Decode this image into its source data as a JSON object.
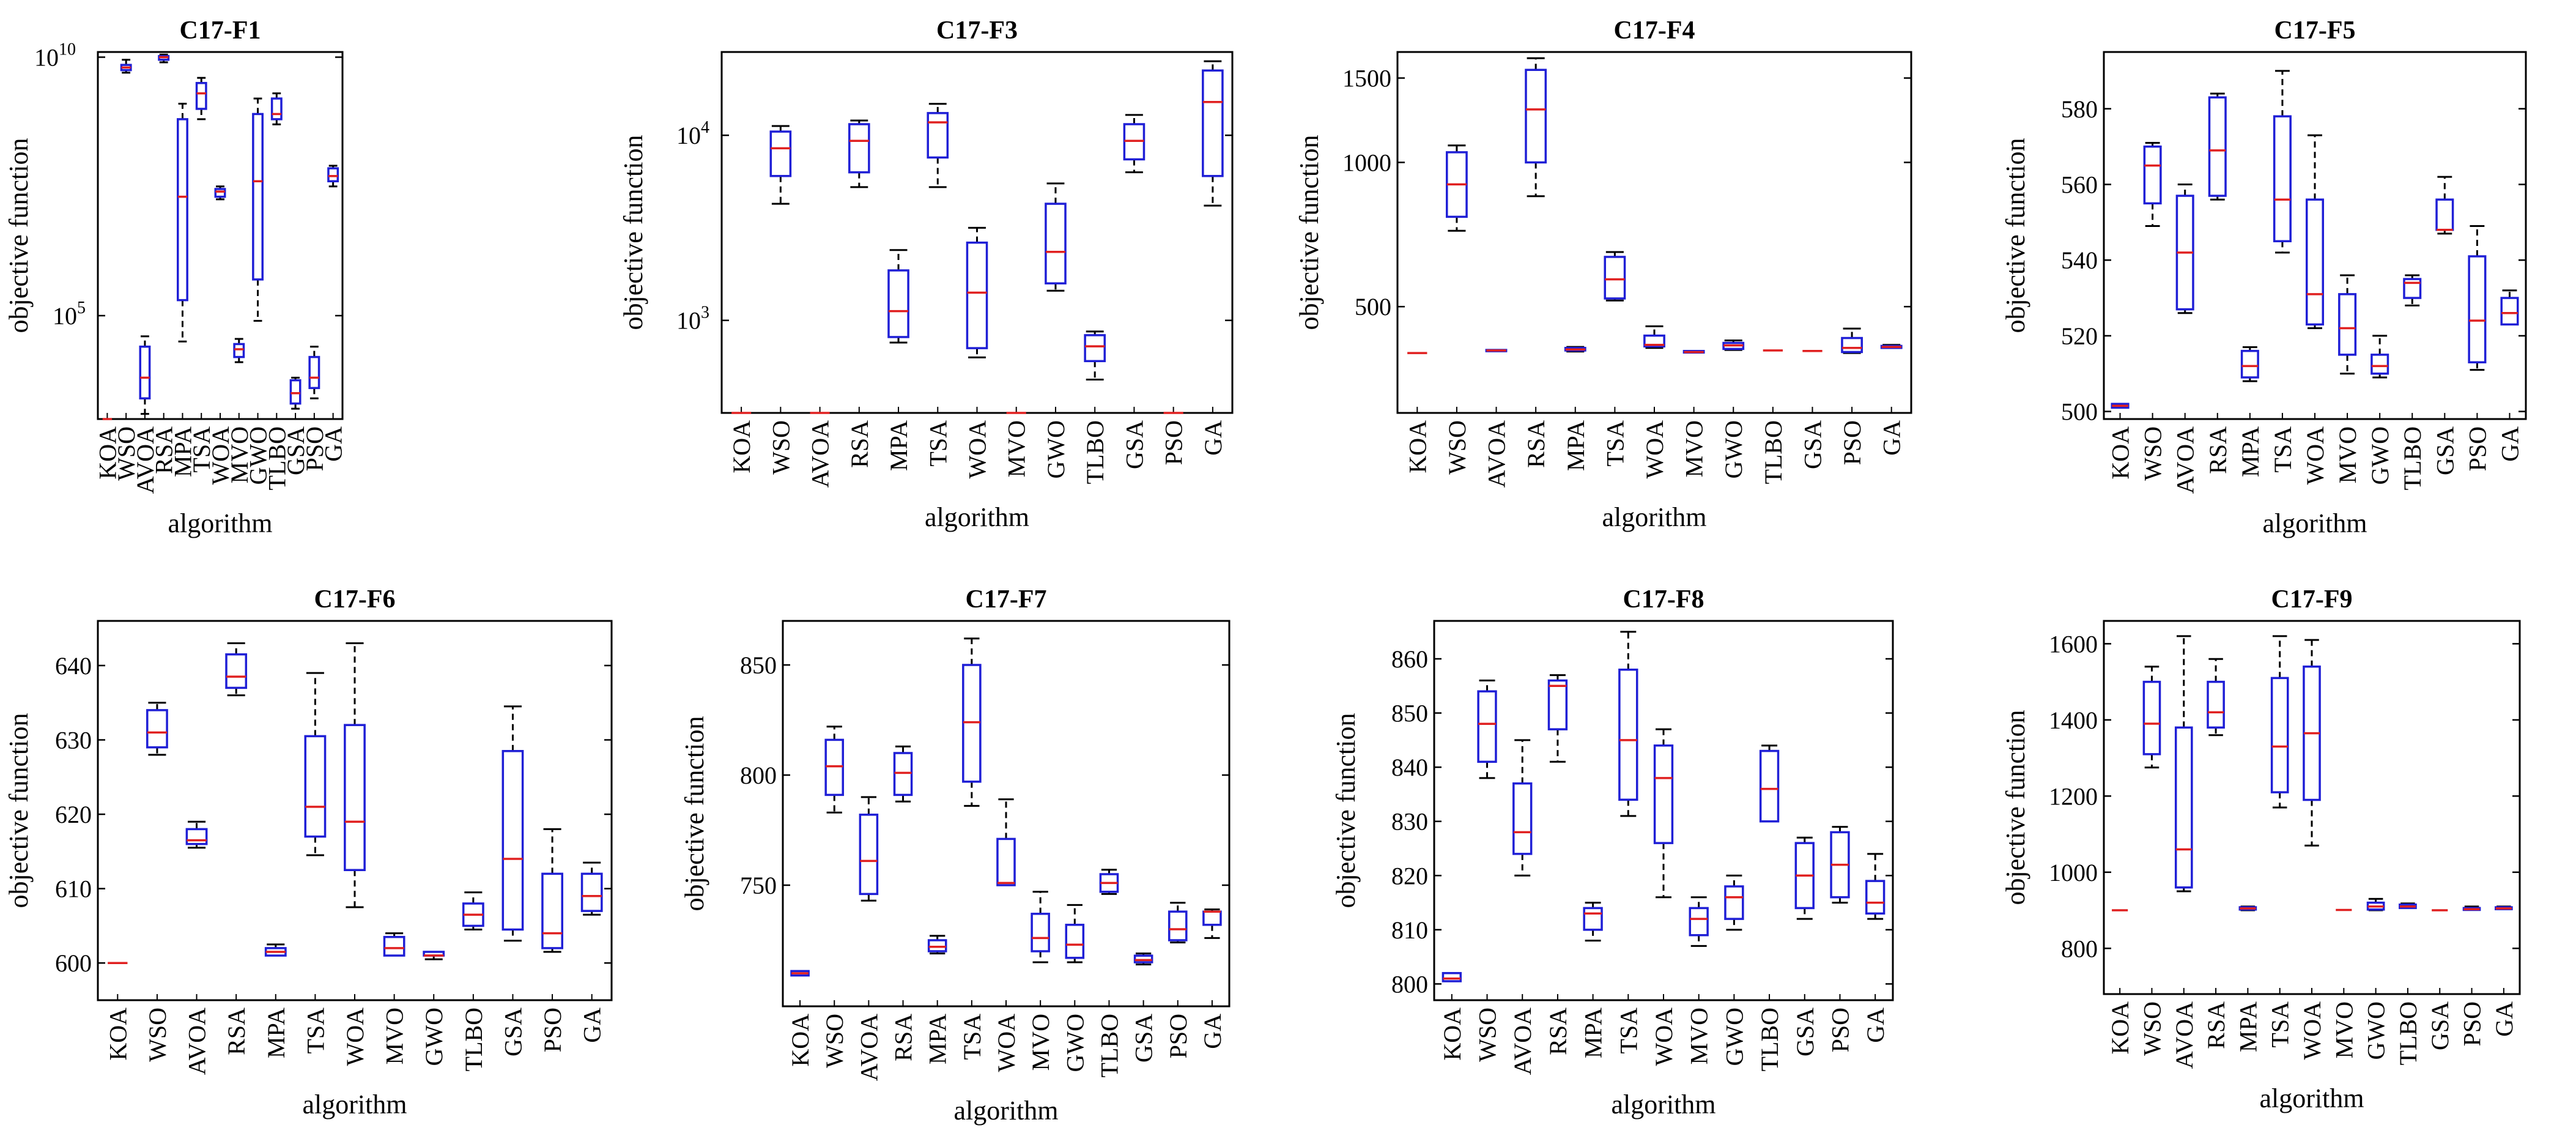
{
  "chart_data": [
    {
      "type": "boxplot",
      "title": "C17-F1",
      "xlabel": "algorithm",
      "ylabel": "objective function",
      "yscale": "log",
      "ylim": [
        3.0,
        10.1
      ],
      "yticks": [
        {
          "value": 5,
          "label": "10",
          "sup": "5"
        },
        {
          "value": 10,
          "label": "10",
          "sup": "10"
        }
      ],
      "categories": [
        "KOA",
        "WSO",
        "AVOA",
        "RSA",
        "MPA",
        "TSA",
        "WOA",
        "MVO",
        "GWO",
        "TLBO",
        "GSA",
        "PSO",
        "GA"
      ],
      "boxes": [
        {
          "wlo": 3.0,
          "q1": 3.0,
          "med": 3.0,
          "q3": 3.0,
          "whi": 3.0
        },
        {
          "wlo": 9.7,
          "q1": 9.75,
          "med": 9.8,
          "q3": 9.85,
          "whi": 9.95
        },
        {
          "wlo": 3.1,
          "q1": 3.4,
          "med": 3.8,
          "q3": 4.4,
          "whi": 4.6
        },
        {
          "wlo": 9.9,
          "q1": 9.95,
          "med": 10.0,
          "q3": 10.02,
          "whi": 10.05
        },
        {
          "wlo": 4.5,
          "q1": 5.3,
          "med": 7.3,
          "q3": 8.8,
          "whi": 9.1
        },
        {
          "wlo": 8.8,
          "q1": 9.0,
          "med": 9.3,
          "q3": 9.5,
          "whi": 9.6
        },
        {
          "wlo": 7.25,
          "q1": 7.3,
          "med": 7.4,
          "q3": 7.45,
          "whi": 7.5
        },
        {
          "wlo": 4.1,
          "q1": 4.2,
          "med": 4.35,
          "q3": 4.45,
          "whi": 4.55
        },
        {
          "wlo": 4.9,
          "q1": 5.7,
          "med": 7.6,
          "q3": 8.9,
          "whi": 9.2
        },
        {
          "wlo": 8.7,
          "q1": 8.8,
          "med": 8.9,
          "q3": 9.2,
          "whi": 9.3
        },
        {
          "wlo": 3.2,
          "q1": 3.3,
          "med": 3.5,
          "q3": 3.75,
          "whi": 3.8
        },
        {
          "wlo": 3.4,
          "q1": 3.6,
          "med": 3.8,
          "q3": 4.2,
          "whi": 4.4
        },
        {
          "wlo": 7.5,
          "q1": 7.6,
          "med": 7.7,
          "q3": 7.85,
          "whi": 7.9
        }
      ]
    },
    {
      "type": "boxplot",
      "title": "C17-F3",
      "xlabel": "algorithm",
      "ylabel": "objective function",
      "yscale": "log",
      "ylim": [
        2.5,
        4.45
      ],
      "yticks": [
        {
          "value": 3,
          "label": "10",
          "sup": "3"
        },
        {
          "value": 4,
          "label": "10",
          "sup": "4"
        }
      ],
      "categories": [
        "KOA",
        "WSO",
        "AVOA",
        "RSA",
        "MPA",
        "TSA",
        "WOA",
        "MVO",
        "GWO",
        "TLBO",
        "GSA",
        "PSO",
        "GA"
      ],
      "boxes": [
        {
          "wlo": 2.5,
          "q1": 2.5,
          "med": 2.5,
          "q3": 2.5,
          "whi": 2.5
        },
        {
          "wlo": 3.63,
          "q1": 3.78,
          "med": 3.93,
          "q3": 4.02,
          "whi": 4.05
        },
        {
          "wlo": 2.5,
          "q1": 2.5,
          "med": 2.5,
          "q3": 2.5,
          "whi": 2.5
        },
        {
          "wlo": 3.72,
          "q1": 3.8,
          "med": 3.97,
          "q3": 4.06,
          "whi": 4.08
        },
        {
          "wlo": 2.88,
          "q1": 2.91,
          "med": 3.05,
          "q3": 3.27,
          "whi": 3.38
        },
        {
          "wlo": 3.72,
          "q1": 3.88,
          "med": 4.07,
          "q3": 4.12,
          "whi": 4.17
        },
        {
          "wlo": 2.8,
          "q1": 2.85,
          "med": 3.15,
          "q3": 3.42,
          "whi": 3.5
        },
        {
          "wlo": 2.5,
          "q1": 2.5,
          "med": 2.5,
          "q3": 2.5,
          "whi": 2.5
        },
        {
          "wlo": 3.16,
          "q1": 3.2,
          "med": 3.37,
          "q3": 3.63,
          "whi": 3.74
        },
        {
          "wlo": 2.68,
          "q1": 2.78,
          "med": 2.86,
          "q3": 2.92,
          "whi": 2.94
        },
        {
          "wlo": 3.8,
          "q1": 3.87,
          "med": 3.97,
          "q3": 4.06,
          "whi": 4.11
        },
        {
          "wlo": 2.5,
          "q1": 2.5,
          "med": 2.5,
          "q3": 2.5,
          "whi": 2.5
        },
        {
          "wlo": 3.62,
          "q1": 3.78,
          "med": 4.18,
          "q3": 4.35,
          "whi": 4.4
        }
      ]
    },
    {
      "type": "boxplot",
      "title": "C17-F4",
      "xlabel": "algorithm",
      "ylabel": "objective function",
      "yscale": "log",
      "ylim": [
        300,
        1700
      ],
      "yticks": [
        {
          "value": 500,
          "label": "500"
        },
        {
          "value": 1000,
          "label": "1000"
        },
        {
          "value": 1500,
          "label": "1500"
        }
      ],
      "categories": [
        "KOA",
        "WSO",
        "AVOA",
        "RSA",
        "MPA",
        "TSA",
        "WOA",
        "MVO",
        "GWO",
        "TLBO",
        "GSA",
        "PSO",
        "GA"
      ],
      "boxes": [
        {
          "wlo": 400,
          "q1": 400,
          "med": 400,
          "q3": 400,
          "whi": 400
        },
        {
          "wlo": 720,
          "q1": 770,
          "med": 900,
          "q3": 1050,
          "whi": 1085
        },
        {
          "wlo": 403,
          "q1": 404,
          "med": 405,
          "q3": 406,
          "whi": 407
        },
        {
          "wlo": 850,
          "q1": 1000,
          "med": 1290,
          "q3": 1560,
          "whi": 1650
        },
        {
          "wlo": 403,
          "q1": 405,
          "med": 407,
          "q3": 410,
          "whi": 412
        },
        {
          "wlo": 515,
          "q1": 520,
          "med": 570,
          "q3": 635,
          "whi": 650
        },
        {
          "wlo": 410,
          "q1": 413,
          "med": 416,
          "q3": 435,
          "whi": 455
        },
        {
          "wlo": 400,
          "q1": 401,
          "med": 402,
          "q3": 404,
          "whi": 405
        },
        {
          "wlo": 406,
          "q1": 408,
          "med": 415,
          "q3": 420,
          "whi": 425
        },
        {
          "wlo": 405,
          "q1": 405,
          "med": 405,
          "q3": 405,
          "whi": 406
        },
        {
          "wlo": 403,
          "q1": 403,
          "med": 404,
          "q3": 404,
          "whi": 405
        },
        {
          "wlo": 400,
          "q1": 402,
          "med": 410,
          "q3": 430,
          "whi": 450
        },
        {
          "wlo": 409,
          "q1": 410,
          "med": 412,
          "q3": 414,
          "whi": 416
        }
      ]
    },
    {
      "type": "boxplot",
      "title": "C17-F5",
      "xlabel": "algorithm",
      "ylabel": "objective function",
      "yscale": "linear",
      "ylim": [
        498,
        595
      ],
      "yticks": [
        {
          "value": 500,
          "label": "500"
        },
        {
          "value": 520,
          "label": "520"
        },
        {
          "value": 540,
          "label": "540"
        },
        {
          "value": 560,
          "label": "560"
        },
        {
          "value": 580,
          "label": "580"
        }
      ],
      "categories": [
        "KOA",
        "WSO",
        "AVOA",
        "RSA",
        "MPA",
        "TSA",
        "WOA",
        "MVO",
        "GWO",
        "TLBO",
        "GSA",
        "PSO",
        "GA"
      ],
      "boxes": [
        {
          "wlo": 501,
          "q1": 501,
          "med": 501.5,
          "q3": 502,
          "whi": 502
        },
        {
          "wlo": 549,
          "q1": 555,
          "med": 565,
          "q3": 570,
          "whi": 571
        },
        {
          "wlo": 526,
          "q1": 527,
          "med": 542,
          "q3": 557,
          "whi": 560
        },
        {
          "wlo": 556,
          "q1": 557,
          "med": 569,
          "q3": 583,
          "whi": 584
        },
        {
          "wlo": 508,
          "q1": 509,
          "med": 512,
          "q3": 516,
          "whi": 517
        },
        {
          "wlo": 542,
          "q1": 545,
          "med": 556,
          "q3": 578,
          "whi": 590
        },
        {
          "wlo": 522,
          "q1": 523,
          "med": 531,
          "q3": 556,
          "whi": 573
        },
        {
          "wlo": 510,
          "q1": 515,
          "med": 522,
          "q3": 531,
          "whi": 536
        },
        {
          "wlo": 509,
          "q1": 510,
          "med": 512,
          "q3": 515,
          "whi": 520
        },
        {
          "wlo": 528,
          "q1": 530,
          "med": 534,
          "q3": 535,
          "whi": 536
        },
        {
          "wlo": 547,
          "q1": 548,
          "med": 548,
          "q3": 556,
          "whi": 562
        },
        {
          "wlo": 511,
          "q1": 513,
          "med": 524,
          "q3": 541,
          "whi": 549
        },
        {
          "wlo": 523,
          "q1": 523,
          "med": 526,
          "q3": 530,
          "whi": 532
        }
      ]
    },
    {
      "type": "boxplot",
      "title": "C17-F6",
      "xlabel": "algorithm",
      "ylabel": "objective function",
      "yscale": "linear",
      "ylim": [
        595,
        646
      ],
      "yticks": [
        {
          "value": 600,
          "label": "600"
        },
        {
          "value": 610,
          "label": "610"
        },
        {
          "value": 620,
          "label": "620"
        },
        {
          "value": 630,
          "label": "630"
        },
        {
          "value": 640,
          "label": "640"
        }
      ],
      "categories": [
        "KOA",
        "WSO",
        "AVOA",
        "RSA",
        "MPA",
        "TSA",
        "WOA",
        "MVO",
        "GWO",
        "TLBO",
        "GSA",
        "PSO",
        "GA"
      ],
      "boxes": [
        {
          "wlo": 600,
          "q1": 600,
          "med": 600,
          "q3": 600,
          "whi": 600
        },
        {
          "wlo": 628,
          "q1": 629,
          "med": 631,
          "q3": 634,
          "whi": 635
        },
        {
          "wlo": 615.5,
          "q1": 616,
          "med": 616.5,
          "q3": 618,
          "whi": 619
        },
        {
          "wlo": 636,
          "q1": 637,
          "med": 638.5,
          "q3": 641.5,
          "whi": 643
        },
        {
          "wlo": 601,
          "q1": 601,
          "med": 601.5,
          "q3": 602,
          "whi": 602.5
        },
        {
          "wlo": 614.5,
          "q1": 617,
          "med": 621,
          "q3": 630.5,
          "whi": 639
        },
        {
          "wlo": 607.5,
          "q1": 612.5,
          "med": 619,
          "q3": 632,
          "whi": 643
        },
        {
          "wlo": 601,
          "q1": 601,
          "med": 602,
          "q3": 603.5,
          "whi": 604
        },
        {
          "wlo": 600.5,
          "q1": 601,
          "med": 601,
          "q3": 601.5,
          "whi": 601.5
        },
        {
          "wlo": 604.5,
          "q1": 605,
          "med": 606.5,
          "q3": 608,
          "whi": 609.5
        },
        {
          "wlo": 603,
          "q1": 604.5,
          "med": 614,
          "q3": 628.5,
          "whi": 634.5
        },
        {
          "wlo": 601.5,
          "q1": 602,
          "med": 604,
          "q3": 612,
          "whi": 618
        },
        {
          "wlo": 606.5,
          "q1": 607,
          "med": 609,
          "q3": 612,
          "whi": 613.5
        }
      ]
    },
    {
      "type": "boxplot",
      "title": "C17-F7",
      "xlabel": "algorithm",
      "ylabel": "objective function",
      "yscale": "linear",
      "ylim": [
        695,
        870
      ],
      "yticks": [
        {
          "value": 750,
          "label": "750"
        },
        {
          "value": 800,
          "label": "800"
        },
        {
          "value": 850,
          "label": "850"
        }
      ],
      "categories": [
        "KOA",
        "WSO",
        "AVOA",
        "RSA",
        "MPA",
        "TSA",
        "WOA",
        "MVO",
        "GWO",
        "TLBO",
        "GSA",
        "PSO",
        "GA"
      ],
      "boxes": [
        {
          "wlo": 709,
          "q1": 709,
          "med": 710,
          "q3": 711,
          "whi": 711
        },
        {
          "wlo": 783,
          "q1": 791,
          "med": 804,
          "q3": 816,
          "whi": 822
        },
        {
          "wlo": 743,
          "q1": 746,
          "med": 761,
          "q3": 782,
          "whi": 790
        },
        {
          "wlo": 788,
          "q1": 791,
          "med": 801,
          "q3": 810,
          "whi": 813
        },
        {
          "wlo": 719,
          "q1": 720,
          "med": 722,
          "q3": 725,
          "whi": 727
        },
        {
          "wlo": 786,
          "q1": 797,
          "med": 824,
          "q3": 850,
          "whi": 862
        },
        {
          "wlo": 750,
          "q1": 750,
          "med": 751,
          "q3": 771,
          "whi": 789
        },
        {
          "wlo": 715,
          "q1": 720,
          "med": 726,
          "q3": 737,
          "whi": 747
        },
        {
          "wlo": 715,
          "q1": 717,
          "med": 723,
          "q3": 732,
          "whi": 741
        },
        {
          "wlo": 746,
          "q1": 747,
          "med": 751,
          "q3": 755,
          "whi": 757
        },
        {
          "wlo": 714,
          "q1": 715,
          "med": 716,
          "q3": 718,
          "whi": 719
        },
        {
          "wlo": 724,
          "q1": 725,
          "med": 730,
          "q3": 738,
          "whi": 742
        },
        {
          "wlo": 726,
          "q1": 732,
          "med": 738,
          "q3": 738,
          "whi": 739
        }
      ]
    },
    {
      "type": "boxplot",
      "title": "C17-F8",
      "xlabel": "algorithm",
      "ylabel": "objective function",
      "yscale": "linear",
      "ylim": [
        797,
        867
      ],
      "yticks": [
        {
          "value": 800,
          "label": "800"
        },
        {
          "value": 810,
          "label": "810"
        },
        {
          "value": 820,
          "label": "820"
        },
        {
          "value": 830,
          "label": "830"
        },
        {
          "value": 840,
          "label": "840"
        },
        {
          "value": 850,
          "label": "850"
        },
        {
          "value": 860,
          "label": "860"
        }
      ],
      "categories": [
        "KOA",
        "WSO",
        "AVOA",
        "RSA",
        "MPA",
        "TSA",
        "WOA",
        "MVO",
        "GWO",
        "TLBO",
        "GSA",
        "PSO",
        "GA"
      ],
      "boxes": [
        {
          "wlo": 800.5,
          "q1": 800.5,
          "med": 801,
          "q3": 802,
          "whi": 802
        },
        {
          "wlo": 838,
          "q1": 841,
          "med": 848,
          "q3": 854,
          "whi": 856
        },
        {
          "wlo": 820,
          "q1": 824,
          "med": 828,
          "q3": 837,
          "whi": 845
        },
        {
          "wlo": 841,
          "q1": 847,
          "med": 855,
          "q3": 856,
          "whi": 857
        },
        {
          "wlo": 808,
          "q1": 810,
          "med": 813,
          "q3": 814,
          "whi": 815
        },
        {
          "wlo": 831,
          "q1": 834,
          "med": 845,
          "q3": 858,
          "whi": 865
        },
        {
          "wlo": 816,
          "q1": 826,
          "med": 838,
          "q3": 844,
          "whi": 847
        },
        {
          "wlo": 807,
          "q1": 809,
          "med": 812,
          "q3": 814,
          "whi": 816
        },
        {
          "wlo": 810,
          "q1": 812,
          "med": 816,
          "q3": 818,
          "whi": 820
        },
        {
          "wlo": 830,
          "q1": 830,
          "med": 836,
          "q3": 843,
          "whi": 844
        },
        {
          "wlo": 812,
          "q1": 814,
          "med": 820,
          "q3": 826,
          "whi": 827
        },
        {
          "wlo": 815,
          "q1": 816,
          "med": 822,
          "q3": 828,
          "whi": 829
        },
        {
          "wlo": 812,
          "q1": 813,
          "med": 815,
          "q3": 819,
          "whi": 824
        }
      ]
    },
    {
      "type": "boxplot",
      "title": "C17-F9",
      "xlabel": "algorithm",
      "ylabel": "objective function",
      "yscale": "linear",
      "ylim": [
        680,
        1660
      ],
      "yticks": [
        {
          "value": 800,
          "label": "800"
        },
        {
          "value": 1000,
          "label": "1000"
        },
        {
          "value": 1200,
          "label": "1200"
        },
        {
          "value": 1400,
          "label": "1400"
        },
        {
          "value": 1600,
          "label": "1600"
        }
      ],
      "categories": [
        "KOA",
        "WSO",
        "AVOA",
        "RSA",
        "MPA",
        "TSA",
        "WOA",
        "MVO",
        "GWO",
        "TLBO",
        "GSA",
        "PSO",
        "GA"
      ],
      "boxes": [
        {
          "wlo": 900,
          "q1": 900,
          "med": 900,
          "q3": 900,
          "whi": 900
        },
        {
          "wlo": 1275,
          "q1": 1310,
          "med": 1390,
          "q3": 1500,
          "whi": 1540
        },
        {
          "wlo": 950,
          "q1": 960,
          "med": 1060,
          "q3": 1380,
          "whi": 1620
        },
        {
          "wlo": 1360,
          "q1": 1380,
          "med": 1420,
          "q3": 1500,
          "whi": 1560
        },
        {
          "wlo": 900,
          "q1": 902,
          "med": 905,
          "q3": 908,
          "whi": 910
        },
        {
          "wlo": 1170,
          "q1": 1210,
          "med": 1330,
          "q3": 1510,
          "whi": 1620
        },
        {
          "wlo": 1070,
          "q1": 1190,
          "med": 1365,
          "q3": 1540,
          "whi": 1610
        },
        {
          "wlo": 900,
          "q1": 900,
          "med": 901,
          "q3": 902,
          "whi": 902
        },
        {
          "wlo": 900,
          "q1": 902,
          "med": 910,
          "q3": 920,
          "whi": 930
        },
        {
          "wlo": 905,
          "q1": 906,
          "med": 910,
          "q3": 915,
          "whi": 918
        },
        {
          "wlo": 900,
          "q1": 900,
          "med": 900,
          "q3": 900,
          "whi": 900
        },
        {
          "wlo": 900,
          "q1": 901,
          "med": 903,
          "q3": 906,
          "whi": 910
        },
        {
          "wlo": 902,
          "q1": 903,
          "med": 905,
          "q3": 908,
          "whi": 910
        }
      ]
    }
  ],
  "colors": {
    "box": "#1f1fd6",
    "median": "#e02020",
    "whisker": "#000000",
    "frame": "#000000"
  }
}
